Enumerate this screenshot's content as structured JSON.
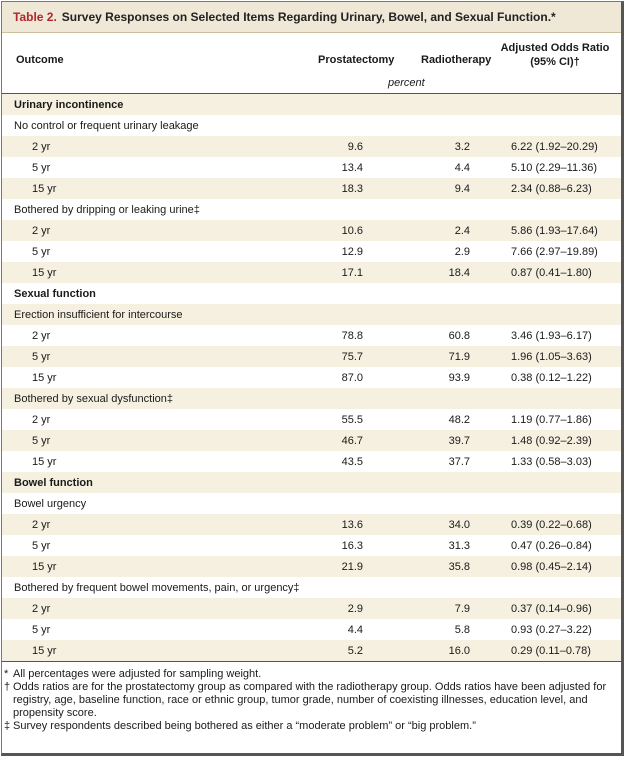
{
  "table": {
    "label": "Table 2.",
    "title": "Survey Responses on Selected Items Regarding Urinary, Bowel, and Sexual Function.*",
    "headers": {
      "outcome": "Outcome",
      "prostatectomy": "Prostatectomy",
      "radiotherapy": "Radiotherapy",
      "aor_line1": "Adjusted Odds Ratio",
      "aor_line2": "(95% CI)†",
      "unit": "percent"
    },
    "rows": [
      {
        "type": "section",
        "label": "Urinary incontinence"
      },
      {
        "type": "item",
        "label": "No control or frequent urinary leakage"
      },
      {
        "type": "sub",
        "label": "2 yr",
        "prostatectomy": "9.6",
        "radiotherapy": "3.2",
        "aor": "6.22 (1.92–20.29)"
      },
      {
        "type": "sub",
        "label": "5 yr",
        "prostatectomy": "13.4",
        "radiotherapy": "4.4",
        "aor": "5.10 (2.29–11.36)"
      },
      {
        "type": "sub",
        "label": "15 yr",
        "prostatectomy": "18.3",
        "radiotherapy": "9.4",
        "aor": "2.34 (0.88–6.23)"
      },
      {
        "type": "item",
        "label": "Bothered by dripping or leaking urine‡"
      },
      {
        "type": "sub",
        "label": "2 yr",
        "prostatectomy": "10.6",
        "radiotherapy": "2.4",
        "aor": "5.86 (1.93–17.64)"
      },
      {
        "type": "sub",
        "label": "5 yr",
        "prostatectomy": "12.9",
        "radiotherapy": "2.9",
        "aor": "7.66 (2.97–19.89)"
      },
      {
        "type": "sub",
        "label": "15 yr",
        "prostatectomy": "17.1",
        "radiotherapy": "18.4",
        "aor": "0.87 (0.41–1.80)"
      },
      {
        "type": "section",
        "label": "Sexual function"
      },
      {
        "type": "item",
        "label": "Erection insufficient for intercourse"
      },
      {
        "type": "sub",
        "label": "2 yr",
        "prostatectomy": "78.8",
        "radiotherapy": "60.8",
        "aor": "3.46 (1.93–6.17)"
      },
      {
        "type": "sub",
        "label": "5 yr",
        "prostatectomy": "75.7",
        "radiotherapy": "71.9",
        "aor": "1.96 (1.05–3.63)"
      },
      {
        "type": "sub",
        "label": "15 yr",
        "prostatectomy": "87.0",
        "radiotherapy": "93.9",
        "aor": "0.38 (0.12–1.22)"
      },
      {
        "type": "item",
        "label": "Bothered by sexual dysfunction‡"
      },
      {
        "type": "sub",
        "label": "2 yr",
        "prostatectomy": "55.5",
        "radiotherapy": "48.2",
        "aor": "1.19 (0.77–1.86)"
      },
      {
        "type": "sub",
        "label": "5 yr",
        "prostatectomy": "46.7",
        "radiotherapy": "39.7",
        "aor": "1.48 (0.92–2.39)"
      },
      {
        "type": "sub",
        "label": "15 yr",
        "prostatectomy": "43.5",
        "radiotherapy": "37.7",
        "aor": "1.33 (0.58–3.03)"
      },
      {
        "type": "section",
        "label": "Bowel function"
      },
      {
        "type": "item",
        "label": "Bowel urgency"
      },
      {
        "type": "sub",
        "label": "2 yr",
        "prostatectomy": "13.6",
        "radiotherapy": "34.0",
        "aor": "0.39 (0.22–0.68)"
      },
      {
        "type": "sub",
        "label": "5 yr",
        "prostatectomy": "16.3",
        "radiotherapy": "31.3",
        "aor": "0.47 (0.26–0.84)"
      },
      {
        "type": "sub",
        "label": "15 yr",
        "prostatectomy": "21.9",
        "radiotherapy": "35.8",
        "aor": "0.98 (0.45–2.14)"
      },
      {
        "type": "item",
        "label": "Bothered by frequent bowel movements, pain, or urgency‡"
      },
      {
        "type": "sub",
        "label": "2 yr",
        "prostatectomy": "2.9",
        "radiotherapy": "7.9",
        "aor": "0.37 (0.14–0.96)"
      },
      {
        "type": "sub",
        "label": "5 yr",
        "prostatectomy": "4.4",
        "radiotherapy": "5.8",
        "aor": "0.93 (0.27–3.22)"
      },
      {
        "type": "sub",
        "label": "15 yr",
        "prostatectomy": "5.2",
        "radiotherapy": "16.0",
        "aor": "0.29 (0.11–0.78)"
      }
    ],
    "footnotes": [
      {
        "mark": "*",
        "text": "All percentages were adjusted for sampling weight."
      },
      {
        "mark": "†",
        "text": "Odds ratios are for the prostatectomy group as compared with the radiotherapy group. Odds ratios have been adjusted for registry, age, baseline function, race or ethnic group, tumor grade, number of coexisting illnesses, education level, and propensity score."
      },
      {
        "mark": "‡",
        "text": "Survey respondents described being bothered as either a “moderate problem” or “big problem.”"
      }
    ]
  }
}
